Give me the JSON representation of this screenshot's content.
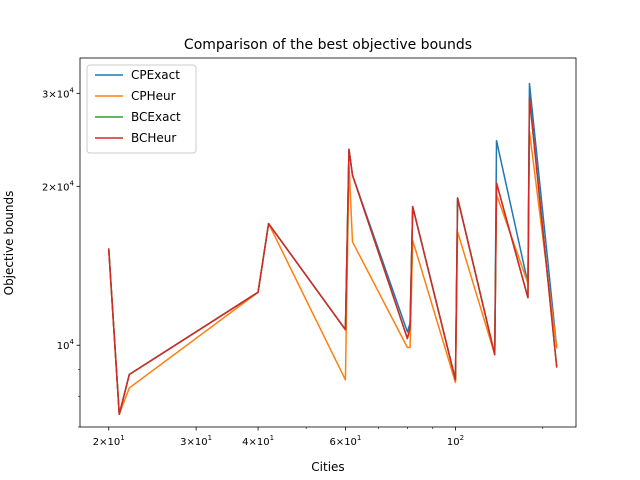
{
  "chart_data": {
    "type": "line",
    "title": "Comparison of the best objective bounds",
    "xlabel": "Cities",
    "ylabel": "Objective bounds",
    "xscale": "log",
    "yscale": "log",
    "xlim": [
      17.5,
      175
    ],
    "ylim": [
      7000,
      35000
    ],
    "xticks": [
      {
        "value": 20,
        "mant": "2",
        "exp": "1"
      },
      {
        "value": 30,
        "mant": "3",
        "exp": "1"
      },
      {
        "value": 40,
        "mant": "4",
        "exp": "1"
      },
      {
        "value": 60,
        "mant": "6",
        "exp": "1"
      },
      {
        "value": 100,
        "mant": "",
        "exp": "2"
      }
    ],
    "yticks": [
      {
        "value": 10000,
        "mant": "",
        "exp": "4"
      },
      {
        "value": 20000,
        "mant": "2",
        "exp": "4"
      },
      {
        "value": 30000,
        "mant": "3",
        "exp": "4"
      }
    ],
    "grid": false,
    "legend_position": "top-left",
    "x": [
      20,
      21,
      22,
      40,
      42,
      60,
      61,
      62,
      80,
      81,
      82,
      100,
      101,
      120,
      121,
      140,
      141,
      160
    ],
    "series": [
      {
        "name": "CPExact",
        "color": "#1f77b4",
        "values": [
          15200,
          7400,
          8800,
          12600,
          17000,
          10700,
          23500,
          21000,
          10600,
          11000,
          18300,
          8600,
          19000,
          9600,
          24400,
          13100,
          31300,
          9900
        ]
      },
      {
        "name": "CPHeur",
        "color": "#ff7f0e",
        "values": [
          15200,
          7400,
          8300,
          12600,
          17000,
          8600,
          22000,
          15700,
          9900,
          9900,
          15800,
          8500,
          16400,
          9600,
          19300,
          13100,
          25400,
          9900
        ]
      },
      {
        "name": "BCExact",
        "color": "#2ca02c",
        "values": [
          15200,
          7400,
          8800,
          12600,
          17000,
          10700,
          23500,
          21000,
          10300,
          10800,
          18300,
          8600,
          19000,
          9600,
          20300,
          12300,
          29400,
          9100
        ]
      },
      {
        "name": "BCHeur",
        "color": "#d62728",
        "values": [
          15200,
          7400,
          8800,
          12600,
          17000,
          10700,
          23500,
          21000,
          10300,
          10800,
          18300,
          8600,
          19000,
          9600,
          20300,
          12300,
          29400,
          9100
        ]
      }
    ]
  }
}
